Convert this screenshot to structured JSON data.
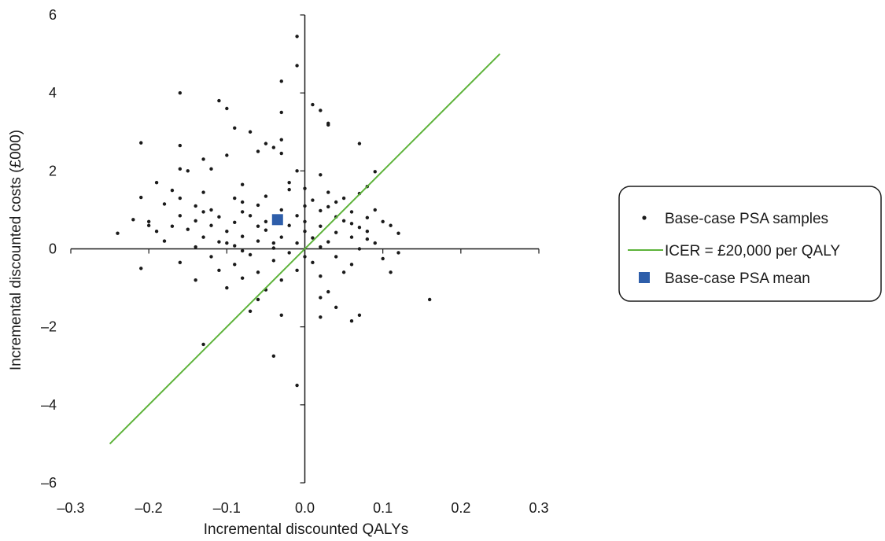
{
  "chart_data": {
    "type": "scatter",
    "xlabel": "Incremental discounted QALYs",
    "ylabel": "Incremental discounted costs (£000)",
    "xlim": [
      -0.3,
      0.3
    ],
    "ylim": [
      -6,
      6
    ],
    "x_ticks": [
      "–0.3",
      "–0.2",
      "–0.1",
      "0.0",
      "0.1",
      "0.2",
      "0.3"
    ],
    "y_ticks": [
      "6",
      "4",
      "2",
      "0",
      "–2",
      "–4",
      "–6"
    ],
    "grid": false,
    "legend_position": "right",
    "legend": {
      "samples_label": "Base-case PSA samples",
      "icer_label": "ICER = £20,000 per QALY",
      "mean_label": "Base-case PSA mean"
    },
    "colors": {
      "samples": "#1a1a1a",
      "icer_line": "#5db33a",
      "mean": "#2e5eaa",
      "axes": "#1a1a1a"
    },
    "icer_line": {
      "x": [
        -0.25,
        0.25
      ],
      "y": [
        -5.0,
        5.0
      ]
    },
    "mean_point": {
      "x": -0.035,
      "y": 0.75
    },
    "series": [
      {
        "name": "Base-case PSA samples",
        "points": [
          [
            -0.01,
            5.45
          ],
          [
            -0.01,
            4.7
          ],
          [
            -0.03,
            4.3
          ],
          [
            -0.16,
            4.0
          ],
          [
            0.01,
            3.7
          ],
          [
            -0.11,
            3.8
          ],
          [
            -0.1,
            3.6
          ],
          [
            0.02,
            3.55
          ],
          [
            -0.03,
            3.5
          ],
          [
            0.03,
            3.22
          ],
          [
            0.03,
            3.18
          ],
          [
            -0.09,
            3.1
          ],
          [
            -0.07,
            3.0
          ],
          [
            -0.21,
            2.72
          ],
          [
            -0.16,
            2.65
          ],
          [
            -0.05,
            2.7
          ],
          [
            0.07,
            2.7
          ],
          [
            -0.03,
            2.8
          ],
          [
            -0.04,
            2.6
          ],
          [
            -0.06,
            2.5
          ],
          [
            -0.03,
            2.45
          ],
          [
            -0.1,
            2.4
          ],
          [
            -0.13,
            2.3
          ],
          [
            -0.15,
            2.0
          ],
          [
            -0.12,
            2.05
          ],
          [
            -0.16,
            2.05
          ],
          [
            -0.01,
            2.0
          ],
          [
            0.02,
            1.9
          ],
          [
            0.09,
            1.98
          ],
          [
            -0.19,
            1.7
          ],
          [
            -0.08,
            1.65
          ],
          [
            0.08,
            1.6
          ],
          [
            -0.17,
            1.5
          ],
          [
            -0.13,
            1.45
          ],
          [
            -0.02,
            1.52
          ],
          [
            0.03,
            1.45
          ],
          [
            0.07,
            1.42
          ],
          [
            -0.21,
            1.32
          ],
          [
            -0.16,
            1.3
          ],
          [
            -0.09,
            1.3
          ],
          [
            -0.05,
            1.35
          ],
          [
            0.01,
            1.25
          ],
          [
            0.05,
            1.3
          ],
          [
            -0.18,
            1.15
          ],
          [
            -0.14,
            1.1
          ],
          [
            -0.06,
            1.12
          ],
          [
            0.0,
            1.1
          ],
          [
            0.03,
            1.08
          ],
          [
            -0.12,
            1.0
          ],
          [
            -0.08,
            0.95
          ],
          [
            -0.03,
            1.0
          ],
          [
            0.02,
            0.98
          ],
          [
            0.06,
            0.95
          ],
          [
            0.09,
            1.0
          ],
          [
            -0.16,
            0.85
          ],
          [
            -0.11,
            0.82
          ],
          [
            -0.07,
            0.85
          ],
          [
            -0.01,
            0.85
          ],
          [
            0.04,
            0.82
          ],
          [
            0.08,
            0.8
          ],
          [
            -0.2,
            0.7
          ],
          [
            -0.14,
            0.72
          ],
          [
            -0.09,
            0.68
          ],
          [
            -0.05,
            0.7
          ],
          [
            0.0,
            0.7
          ],
          [
            0.05,
            0.72
          ],
          [
            0.1,
            0.7
          ],
          [
            -0.17,
            0.58
          ],
          [
            -0.12,
            0.6
          ],
          [
            -0.06,
            0.58
          ],
          [
            -0.02,
            0.6
          ],
          [
            0.02,
            0.58
          ],
          [
            0.07,
            0.55
          ],
          [
            0.11,
            0.6
          ],
          [
            -0.24,
            0.4
          ],
          [
            -0.19,
            0.45
          ],
          [
            -0.15,
            0.5
          ],
          [
            -0.1,
            0.45
          ],
          [
            -0.05,
            0.48
          ],
          [
            0.0,
            0.45
          ],
          [
            0.04,
            0.42
          ],
          [
            0.08,
            0.45
          ],
          [
            0.12,
            0.4
          ],
          [
            -0.13,
            0.3
          ],
          [
            -0.08,
            0.32
          ],
          [
            -0.03,
            0.3
          ],
          [
            0.01,
            0.28
          ],
          [
            0.06,
            0.3
          ],
          [
            -0.18,
            0.2
          ],
          [
            -0.11,
            0.18
          ],
          [
            -0.06,
            0.2
          ],
          [
            -0.01,
            0.15
          ],
          [
            0.03,
            0.18
          ],
          [
            0.09,
            0.15
          ],
          [
            -0.14,
            0.05
          ],
          [
            -0.09,
            0.08
          ],
          [
            -0.04,
            0.02
          ],
          [
            0.02,
            0.05
          ],
          [
            0.07,
            0.0
          ],
          [
            0.12,
            -0.1
          ],
          [
            -0.12,
            -0.2
          ],
          [
            -0.07,
            -0.15
          ],
          [
            -0.02,
            -0.1
          ],
          [
            0.04,
            -0.2
          ],
          [
            0.1,
            -0.25
          ],
          [
            -0.16,
            -0.35
          ],
          [
            -0.09,
            -0.4
          ],
          [
            -0.04,
            -0.3
          ],
          [
            0.01,
            -0.35
          ],
          [
            0.06,
            -0.4
          ],
          [
            -0.21,
            -0.5
          ],
          [
            -0.11,
            -0.55
          ],
          [
            -0.06,
            -0.6
          ],
          [
            -0.01,
            -0.55
          ],
          [
            0.05,
            -0.6
          ],
          [
            0.11,
            -0.6
          ],
          [
            -0.14,
            -0.8
          ],
          [
            -0.08,
            -0.75
          ],
          [
            -0.03,
            -0.8
          ],
          [
            0.02,
            -0.7
          ],
          [
            -0.1,
            -1.0
          ],
          [
            -0.05,
            -1.05
          ],
          [
            0.03,
            -1.1
          ],
          [
            -0.06,
            -1.3
          ],
          [
            0.02,
            -1.25
          ],
          [
            0.16,
            -1.3
          ],
          [
            -0.07,
            -1.6
          ],
          [
            -0.03,
            -1.7
          ],
          [
            0.04,
            -1.5
          ],
          [
            0.07,
            -1.7
          ],
          [
            0.02,
            -1.75
          ],
          [
            0.06,
            -1.85
          ],
          [
            -0.13,
            -2.45
          ],
          [
            -0.04,
            -2.75
          ],
          [
            -0.01,
            -3.5
          ],
          [
            -0.22,
            0.75
          ],
          [
            -0.2,
            0.6
          ],
          [
            -0.13,
            0.95
          ],
          [
            -0.08,
            1.2
          ],
          [
            -0.02,
            1.7
          ],
          [
            0.0,
            1.55
          ],
          [
            0.04,
            1.2
          ],
          [
            0.06,
            0.65
          ],
          [
            -0.04,
            0.15
          ],
          [
            -0.08,
            -0.05
          ],
          [
            0.0,
            -0.2
          ],
          [
            0.08,
            0.25
          ],
          [
            -0.1,
            0.15
          ]
        ]
      }
    ]
  }
}
